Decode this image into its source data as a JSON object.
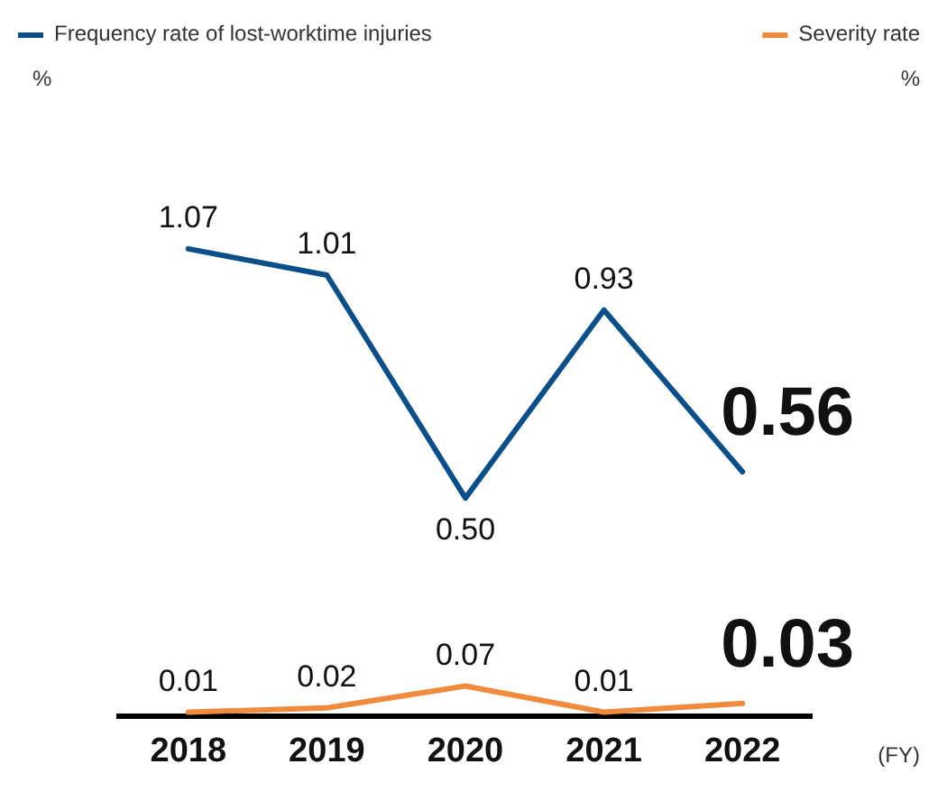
{
  "chart_data": {
    "type": "line",
    "categories": [
      "2018",
      "2019",
      "2020",
      "2021",
      "2022"
    ],
    "series": [
      {
        "name": "Frequency rate of lost-worktime injuries",
        "color": "#0b4f8a",
        "values": [
          1.07,
          1.01,
          0.5,
          0.93,
          0.56
        ],
        "value_labels": [
          "1.07",
          "1.01",
          "0.50",
          "0.93",
          "0.56"
        ]
      },
      {
        "name": "Severity rate",
        "color": "#f08a3c",
        "values": [
          0.01,
          0.02,
          0.07,
          0.01,
          0.03
        ],
        "value_labels": [
          "0.01",
          "0.02",
          "0.07",
          "0.01",
          "0.03"
        ]
      }
    ],
    "xlabel": "(FY)",
    "annotations": [
      "%",
      "%"
    ],
    "legend": "top",
    "tick_labels": "x",
    "marker": "none",
    "line_style": "solid",
    "grid": false
  }
}
